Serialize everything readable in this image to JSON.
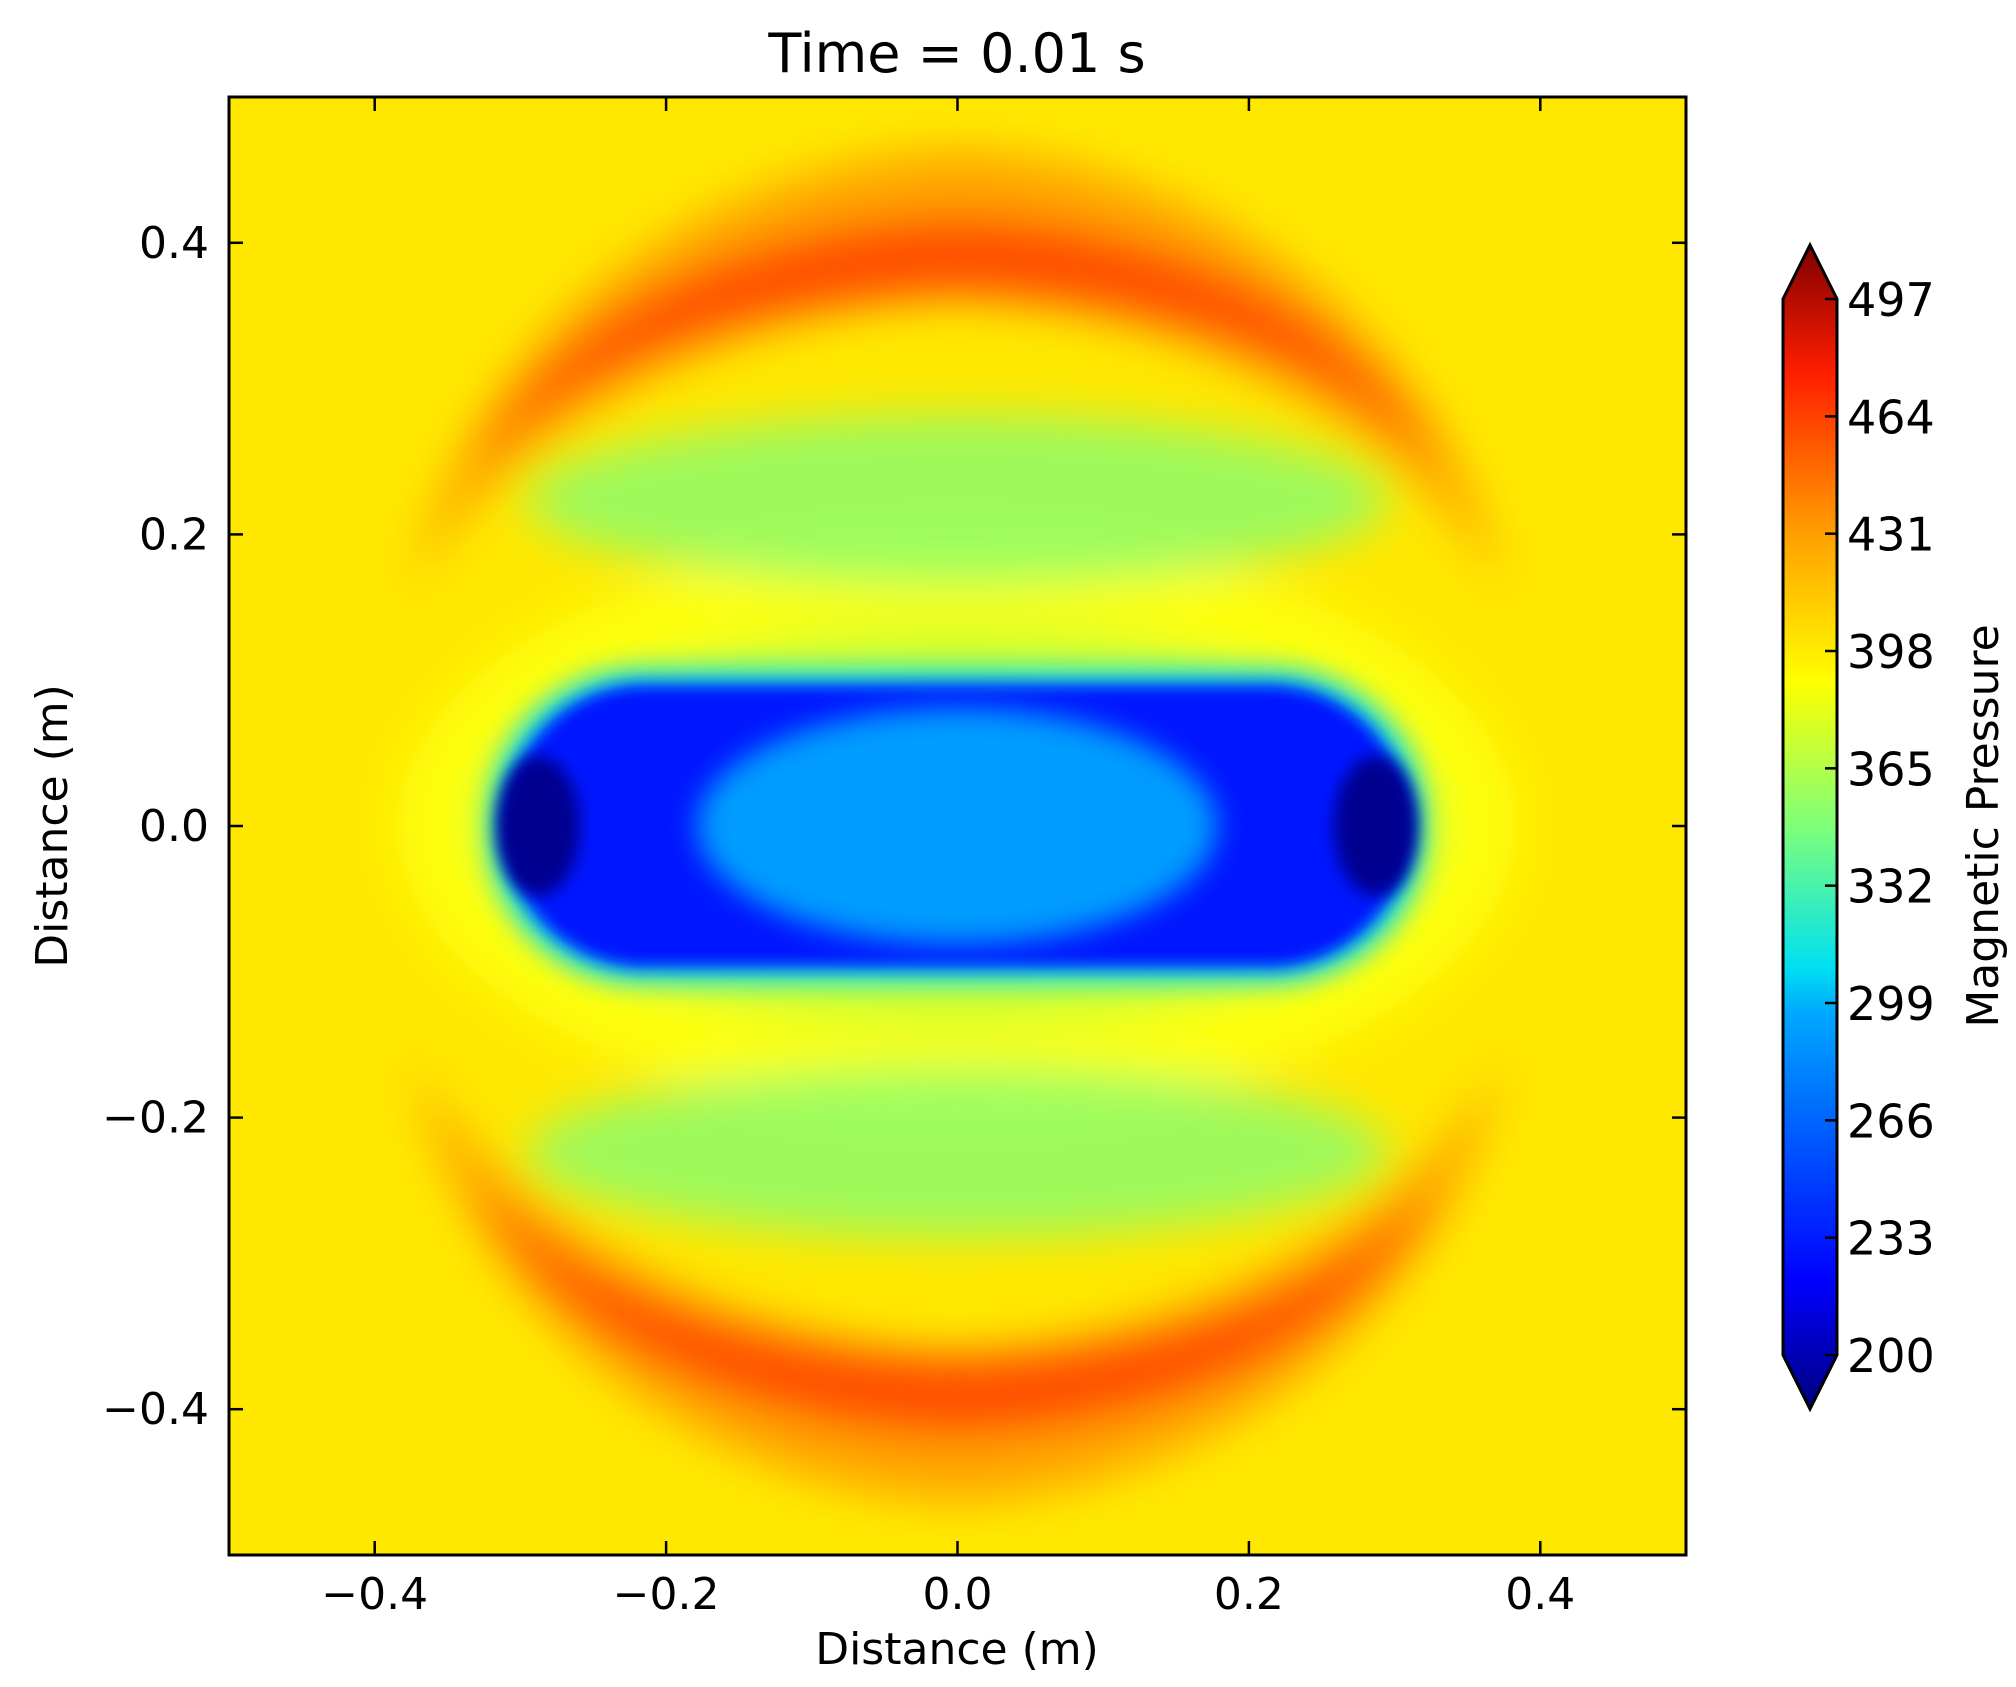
{
  "chart_data": {
    "type": "heatmap",
    "title": "Time = 0.01 s",
    "xlabel": "Distance (m)",
    "ylabel": "Distance (m)",
    "xlim": [
      -0.5,
      0.5
    ],
    "ylim": [
      -0.5,
      0.5
    ],
    "x_ticks": [
      -0.4,
      -0.2,
      0.0,
      0.2,
      0.4
    ],
    "x_tick_labels": [
      "−0.4",
      "−0.2",
      "0.0",
      "0.2",
      "0.4"
    ],
    "y_ticks": [
      0.4,
      0.2,
      0.0,
      -0.2,
      -0.4
    ],
    "y_tick_labels": [
      "0.4",
      "0.2",
      "0.0",
      "−0.2",
      "−0.4"
    ],
    "colormap": "jet",
    "colorbar": {
      "label": "Magnetic Pressure",
      "range": [
        200,
        497
      ],
      "extend": "both",
      "ticks": [
        497,
        464,
        431,
        398,
        365,
        332,
        299,
        266,
        233,
        200
      ],
      "tick_labels": [
        "497",
        "464",
        "431",
        "398",
        "365",
        "332",
        "299",
        "266",
        "233",
        "200"
      ]
    },
    "background_value": 398,
    "features": [
      {
        "region": "central low-pressure ellipse",
        "center": [
          0.0,
          0.0
        ],
        "half_width_x": 0.32,
        "half_height_y": 0.11,
        "min_value": 205
      },
      {
        "region": "upper high-pressure arc",
        "center": [
          0.0,
          0.37
        ],
        "peak_value": 464
      },
      {
        "region": "lower high-pressure arc",
        "center": [
          0.0,
          -0.37
        ],
        "peak_value": 464
      },
      {
        "region": "intermediate bands",
        "values_approx": [
          340,
          370
        ]
      }
    ],
    "grid": false
  }
}
